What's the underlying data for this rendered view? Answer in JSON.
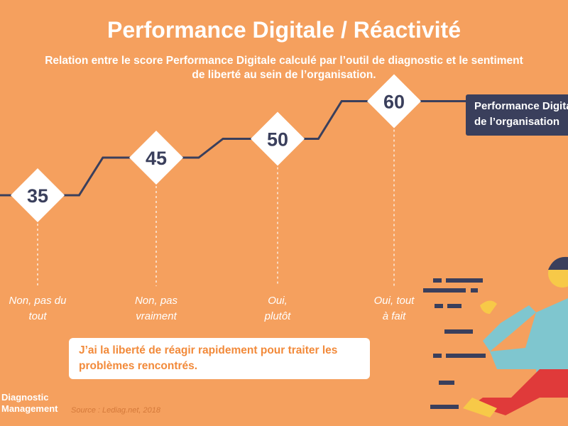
{
  "header": {
    "title": "Performance Digitale / Réactivité",
    "subtitle": "Relation entre le score Performance Digitale calculé par l’outil de diagnostic et le sentiment de liberté au sein de l’organisation."
  },
  "legend": {
    "line1": "Performance Digitale",
    "line2": "de l’organisation"
  },
  "question": "J’ai la liberté de réagir rapidement pour traiter les problèmes rencontrés.",
  "footer": {
    "brand_line1": "Diagnostic",
    "brand_line2": "Management",
    "source": "Source : Lediag.net, 2018"
  },
  "colors": {
    "background": "#F5A05E",
    "line": "#3A3F5C",
    "diamond": "#FFFFFF",
    "legend_bg": "#3A3F5C",
    "question_text": "#F28A3A"
  },
  "illustration": "running-person",
  "chart_data": {
    "type": "line",
    "title": "Performance Digitale / Réactivité",
    "categories": [
      "Non, pas du tout",
      "Non, pas vraiment",
      "Oui, plutôt",
      "Oui, tout à fait"
    ],
    "values": [
      35,
      45,
      50,
      60
    ],
    "labels": [
      "35",
      "45",
      "50",
      "60"
    ],
    "category_lines": [
      [
        "Non, pas du",
        "tout"
      ],
      [
        "Non, pas",
        "vraiment"
      ],
      [
        "Oui,",
        "plutôt"
      ],
      [
        "Oui, tout",
        "à fait"
      ]
    ],
    "grid": false
  }
}
